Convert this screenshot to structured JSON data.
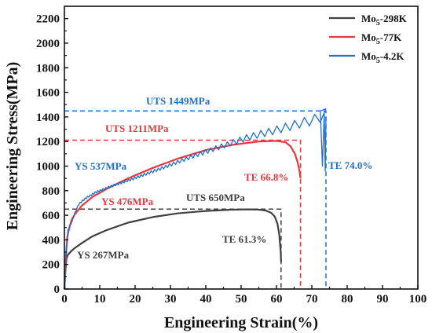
{
  "chart_data": {
    "type": "line",
    "xlabel": "Engineering Strain(%)",
    "ylabel": "Engineering Stress(MPa)",
    "xlim": [
      0,
      100
    ],
    "ylim": [
      0,
      2300
    ],
    "xticks": [
      0,
      10,
      20,
      30,
      40,
      50,
      60,
      70,
      80,
      90,
      100
    ],
    "yticks": [
      0,
      200,
      400,
      600,
      800,
      1000,
      1200,
      1400,
      1600,
      1800,
      2000,
      2200
    ],
    "legend_position": "top-right",
    "series": [
      {
        "name": "Mo5-298K",
        "name_base": "Mo",
        "name_sub": "5",
        "name_suffix": "-298K",
        "color": "#404040",
        "x": [
          0,
          0.3,
          0.6,
          1.0,
          2.0,
          3.0,
          5.0,
          8.0,
          12.0,
          18.0,
          25.0,
          32.0,
          40.0,
          47.0,
          52.0,
          55.0,
          57.0,
          58.5,
          59.5,
          60.3,
          60.8,
          61.2,
          61.3
        ],
        "y": [
          0,
          150,
          250,
          280,
          310,
          335,
          375,
          430,
          480,
          540,
          585,
          615,
          635,
          645,
          648,
          646,
          638,
          620,
          590,
          530,
          440,
          300,
          220
        ],
        "serrated": false
      },
      {
        "name": "Mo5-77K",
        "name_base": "Mo",
        "name_sub": "5",
        "name_suffix": "-77K",
        "color": "#e8383b",
        "x": [
          0,
          0.4,
          0.8,
          1.2,
          2.0,
          3.0,
          5.0,
          8.0,
          12.0,
          18.0,
          25.0,
          32.0,
          40.0,
          48.0,
          55.0,
          60.0,
          62.5,
          64.0,
          65.2,
          66.0,
          66.5,
          66.8
        ],
        "y": [
          0,
          250,
          420,
          476,
          560,
          610,
          680,
          750,
          815,
          900,
          985,
          1060,
          1130,
          1175,
          1200,
          1205,
          1195,
          1160,
          1100,
          1030,
          960,
          900
        ],
        "serrated": false
      },
      {
        "name": "Mo5-4.2K",
        "name_base": "Mo",
        "name_sub": "5",
        "name_suffix": "-4.2K",
        "color": "#1e6fd0",
        "x": [
          0,
          0.5,
          1.0,
          2.0,
          3.0,
          4.0,
          6.0,
          9.0,
          13.0,
          20.0,
          28.0,
          36.0,
          44.0,
          52.0,
          60.0,
          66.0,
          70.0,
          72.0,
          73.0,
          74.0
        ],
        "y": [
          0,
          300,
          480,
          537,
          620,
          690,
          740,
          790,
          835,
          905,
          990,
          1080,
          1160,
          1240,
          1300,
          1350,
          1380,
          1400,
          1420,
          1430
        ],
        "serrated": true,
        "serration_amplitude": 90
      }
    ],
    "annotations": [
      {
        "text": "UTS 650MPa",
        "color": "#404040"
      },
      {
        "text": "TE 61.3%",
        "color": "#404040"
      },
      {
        "text": "YS 267MPa",
        "color": "#404040"
      },
      {
        "text": "UTS 1211MPa",
        "color": "#e8383b"
      },
      {
        "text": "TE 66.8%",
        "color": "#e8383b"
      },
      {
        "text": "YS 476MPa",
        "color": "#e8383b"
      },
      {
        "text": "UTS 1449MPa",
        "color": "#1e6fd0"
      },
      {
        "text": "TE 74.0%",
        "color": "#1e6fd0"
      },
      {
        "text": "YS 537MPa",
        "color": "#1e6fd0"
      }
    ],
    "reference_lines": [
      {
        "stress": 650,
        "strain": 61.3,
        "color": "#404040"
      },
      {
        "stress": 1211,
        "strain": 66.8,
        "color": "#e8383b"
      },
      {
        "stress": 1449,
        "strain": 74.0,
        "color": "#1e6fd0"
      }
    ]
  }
}
